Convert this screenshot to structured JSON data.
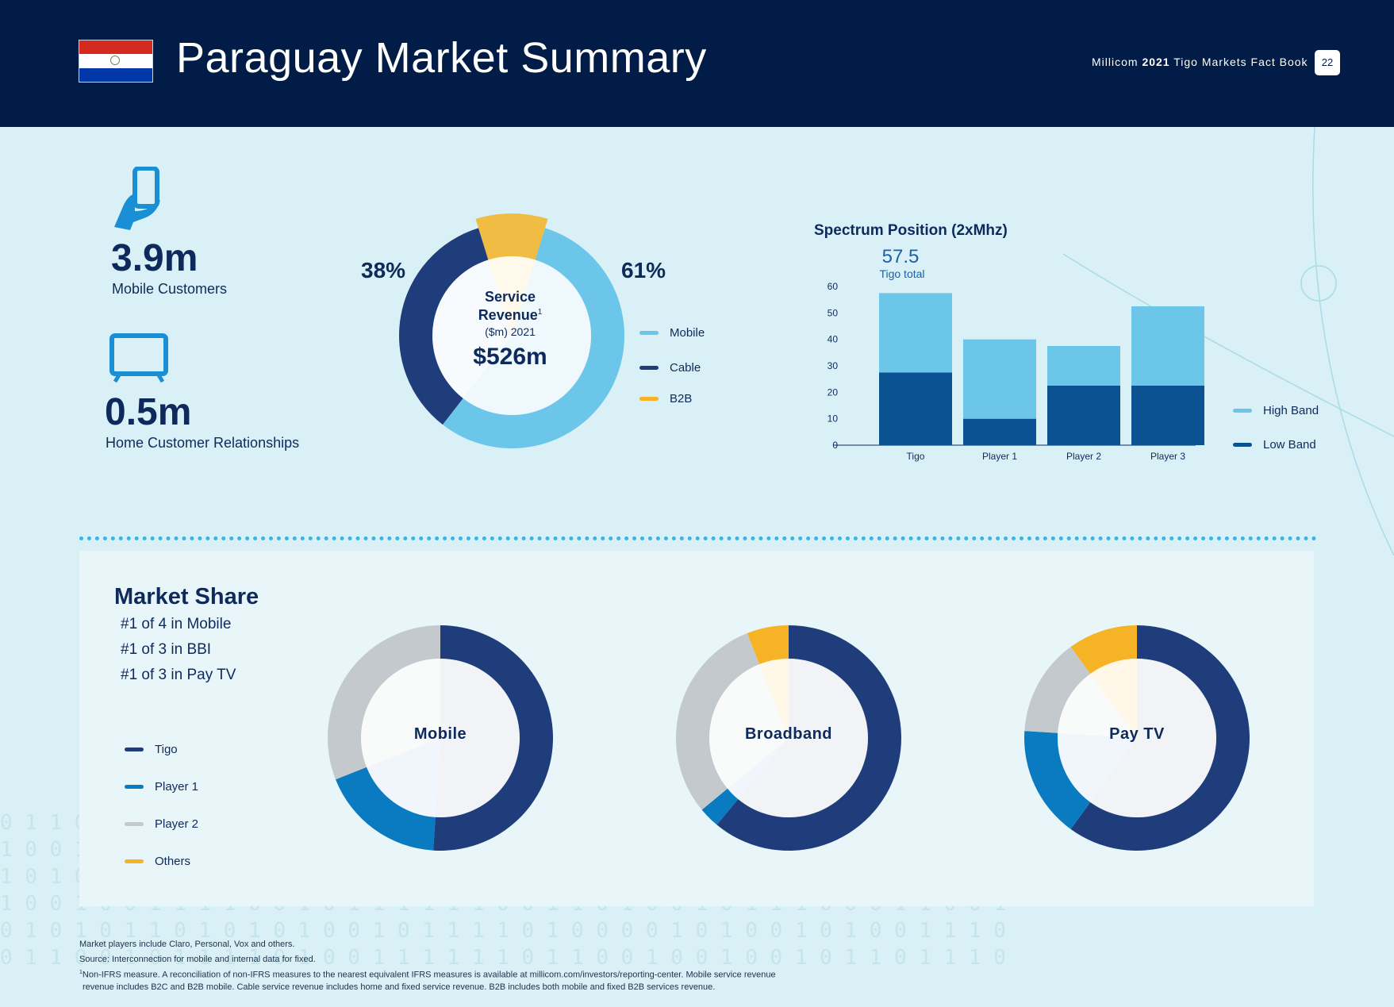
{
  "header": {
    "title": "Paraguay Market Summary",
    "factbook_prefix": "Millicom",
    "factbook_year": "2021",
    "factbook_suffix": "Tigo Markets Fact Book",
    "page_number": "22"
  },
  "kpis": {
    "mobile_value": "3.9m",
    "mobile_label": "Mobile Customers",
    "home_value": "0.5m",
    "home_label": "Home Customer Relationships"
  },
  "revenue": {
    "pct_left": "38%",
    "pct_right": "61%",
    "center_line1": "Service",
    "center_line2": "Revenue",
    "center_sup": "1",
    "center_line3": "($m) 2021",
    "center_value": "$526m",
    "legend": [
      {
        "label": "Mobile",
        "color": "#6cc6ea"
      },
      {
        "label": "Cable",
        "color": "#1f3d7a"
      },
      {
        "label": "B2B",
        "color": "#f5b325"
      }
    ]
  },
  "spectrum": {
    "title": "Spectrum Position (2xMhz)",
    "total_value": "57.5",
    "total_label": "Tigo total",
    "legend": [
      {
        "label": "High Band",
        "color": "#6cc6ea"
      },
      {
        "label": "Low Band",
        "color": "#0a5291"
      }
    ]
  },
  "chart_data": [
    {
      "type": "bar",
      "title": "Spectrum Position (2xMhz)",
      "categories": [
        "Tigo",
        "Player 1",
        "Player 2",
        "Player 3"
      ],
      "series": [
        {
          "name": "Low Band",
          "values": [
            27.5,
            10,
            22.5,
            22.5
          ]
        },
        {
          "name": "High Band",
          "values": [
            30,
            30,
            15,
            30
          ]
        }
      ],
      "stacked": true,
      "ylim": [
        0,
        60
      ],
      "yticks": [
        0,
        10,
        20,
        30,
        40,
        50,
        60
      ],
      "annotation": "57.5 Tigo total",
      "legend_position": "right"
    },
    {
      "type": "pie",
      "title": "Service Revenue ($m) 2021",
      "categories": [
        "Mobile",
        "Cable",
        "B2B"
      ],
      "values": [
        61,
        38,
        1
      ]
    },
    {
      "type": "pie",
      "title": "Mobile",
      "categories": [
        "Tigo",
        "Player 1",
        "Player 2",
        "Others"
      ],
      "values": [
        51,
        18,
        31,
        0
      ]
    },
    {
      "type": "pie",
      "title": "Broadband",
      "categories": [
        "Tigo",
        "Player 1",
        "Player 2",
        "Others"
      ],
      "values": [
        61,
        3,
        30,
        6
      ]
    },
    {
      "type": "pie",
      "title": "Pay TV",
      "categories": [
        "Tigo",
        "Player 1",
        "Player 2",
        "Others"
      ],
      "values": [
        60,
        16,
        14,
        10
      ]
    }
  ],
  "market_share": {
    "title": "Market Share",
    "lines": [
      "#1 of 4 in Mobile",
      "#1 of 3 in BBI",
      "#1 of 3 in Pay TV"
    ],
    "legend": [
      {
        "label": "Tigo",
        "color": "#1f3d7a"
      },
      {
        "label": "Player 1",
        "color": "#0b7bc1"
      },
      {
        "label": "Player 2",
        "color": "#c3c9cd"
      },
      {
        "label": "Others",
        "color": "#f5b325"
      }
    ],
    "donut_labels": [
      "Mobile",
      "Broadband",
      "Pay TV"
    ]
  },
  "footnotes": {
    "line1": "Market players include Claro, Personal, Vox and others.",
    "line2": "Source: Interconnection for mobile and internal data for fixed.",
    "line3": "Non-IFRS measure. A reconciliation of non-IFRS measures to the nearest equivalent IFRS measures is available at millicom.com/investors/reporting-center. Mobile service revenue",
    "line4": "revenue includes B2C and B2B mobile. Cable service revenue includes home and fixed service revenue. B2B includes both mobile and fixed B2B services revenue.",
    "sup": "1"
  }
}
